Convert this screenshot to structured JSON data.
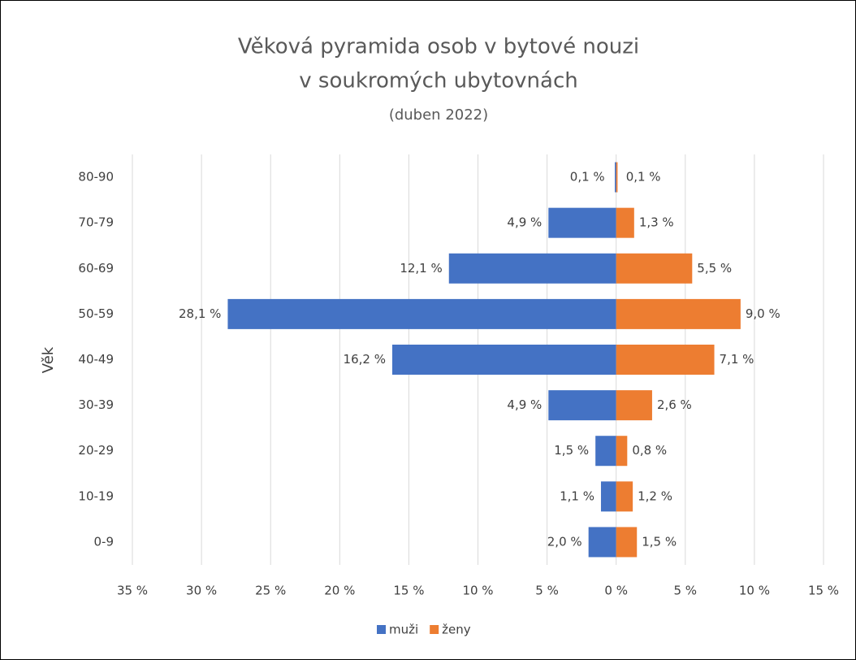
{
  "chart_data": {
    "type": "bar",
    "orientation": "horizontal",
    "title": [
      "Věková pyramida osob v bytové nouzi",
      "v soukromých ubytovnách"
    ],
    "subtitle": "(duben 2022)",
    "y_label": "Věk",
    "categories": [
      "0-9",
      "10-19",
      "20-29",
      "30-39",
      "40-49",
      "50-59",
      "60-69",
      "70-79",
      "80-90"
    ],
    "series": [
      {
        "name": "muži",
        "color": "#4472c4",
        "values": [
          -2.0,
          -1.1,
          -1.5,
          -4.9,
          -16.2,
          -28.1,
          -12.1,
          -4.9,
          -0.1
        ],
        "value_labels": [
          "2,0 %",
          "1,1 %",
          "1,5 %",
          "4,9 %",
          "16,2 %",
          "28,1 %",
          "12,1 %",
          "4,9 %",
          "0,1 %"
        ]
      },
      {
        "name": "ženy",
        "color": "#ed7d31",
        "values": [
          1.5,
          1.2,
          0.8,
          2.6,
          7.1,
          9.0,
          5.5,
          1.3,
          0.1
        ],
        "value_labels": [
          "1,5 %",
          "1,2 %",
          "0,8 %",
          "2,6 %",
          "7,1 %",
          "9,0 %",
          "5,5 %",
          "1,3 %",
          "0,1 %"
        ]
      }
    ],
    "xlim": [
      -35,
      15
    ],
    "xticks": [
      {
        "value": -35,
        "label": "35 %"
      },
      {
        "value": -30,
        "label": "30 %"
      },
      {
        "value": -25,
        "label": "25 %"
      },
      {
        "value": -20,
        "label": "20 %"
      },
      {
        "value": -15,
        "label": "15 %"
      },
      {
        "value": -10,
        "label": "10 %"
      },
      {
        "value": -5,
        "label": "5 %"
      },
      {
        "value": 0,
        "label": "0 %"
      },
      {
        "value": 5,
        "label": "5 %"
      },
      {
        "value": 10,
        "label": "10 %"
      },
      {
        "value": 15,
        "label": "15 %"
      }
    ],
    "grid": true,
    "legend": "bottom"
  }
}
